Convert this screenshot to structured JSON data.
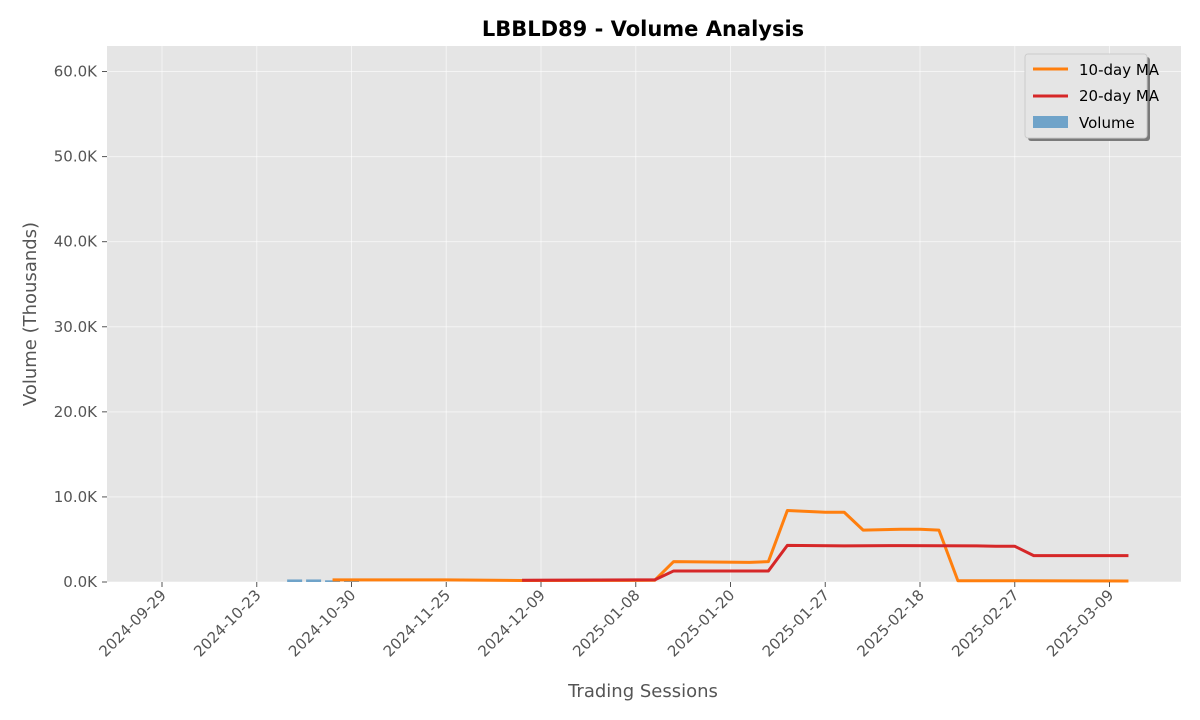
{
  "chart_data": {
    "type": "bar",
    "title": "LBBLD89 - Volume Analysis",
    "xlabel": "Trading Sessions",
    "ylabel": "Volume (Thousands)",
    "ylim": [
      0,
      63000
    ],
    "yticks": [
      0,
      10000,
      20000,
      30000,
      40000,
      50000,
      60000
    ],
    "ytick_labels": [
      "0.0K",
      "10.0K",
      "20.0K",
      "30.0K",
      "40.0K",
      "50.0K",
      "60.0K"
    ],
    "xtick_labels": [
      "2024-09-29",
      "2024-10-23",
      "2024-10-30",
      "2024-11-25",
      "2024-12-09",
      "2025-01-08",
      "2025-01-20",
      "2025-01-27",
      "2025-02-18",
      "2025-02-27",
      "2025-03-09"
    ],
    "grid": true,
    "legend_position": "top-right",
    "volume": {
      "name": "Volume",
      "color": "#6fa3c9",
      "values": [
        0,
        0,
        0,
        0,
        0,
        0,
        0,
        300,
        300,
        200,
        200,
        0,
        0,
        0,
        0,
        0,
        0,
        0,
        0,
        0,
        0,
        0,
        0,
        0,
        0,
        0,
        0,
        0,
        0,
        0,
        0,
        0,
        0,
        0,
        0,
        0,
        0,
        0,
        0,
        0,
        0,
        0,
        0,
        0,
        0,
        0,
        0,
        0,
        0,
        0,
        0,
        0,
        0,
        0,
        0,
        0,
        0,
        0,
        0,
        0,
        0,
        0,
        0,
        0,
        0,
        0,
        0,
        0,
        0,
        0,
        0,
        0,
        0,
        0,
        0,
        0,
        0,
        0,
        0,
        0
      ]
    },
    "ma10": {
      "name": "10-day MA",
      "color": "#ff7f0e",
      "points": [
        [
          9,
          250
        ],
        [
          15,
          250
        ],
        [
          19,
          180
        ],
        [
          26,
          200
        ],
        [
          27,
          2400
        ],
        [
          31,
          2300
        ],
        [
          32,
          2400
        ],
        [
          33,
          8400
        ],
        [
          35,
          8200
        ],
        [
          36,
          8200
        ],
        [
          37,
          6100
        ],
        [
          39,
          6200
        ],
        [
          40,
          6200
        ],
        [
          41,
          6100
        ],
        [
          42,
          150
        ],
        [
          51,
          120
        ]
      ]
    },
    "ma20": {
      "name": "20-day MA",
      "color": "#d62728",
      "points": [
        [
          19,
          200
        ],
        [
          26,
          250
        ],
        [
          27,
          1300
        ],
        [
          32,
          1300
        ],
        [
          33,
          4300
        ],
        [
          36,
          4250
        ],
        [
          39,
          4280
        ],
        [
          43,
          4250
        ],
        [
          44,
          4200
        ],
        [
          45,
          4200
        ],
        [
          46,
          3100
        ],
        [
          51,
          3100
        ]
      ]
    }
  }
}
